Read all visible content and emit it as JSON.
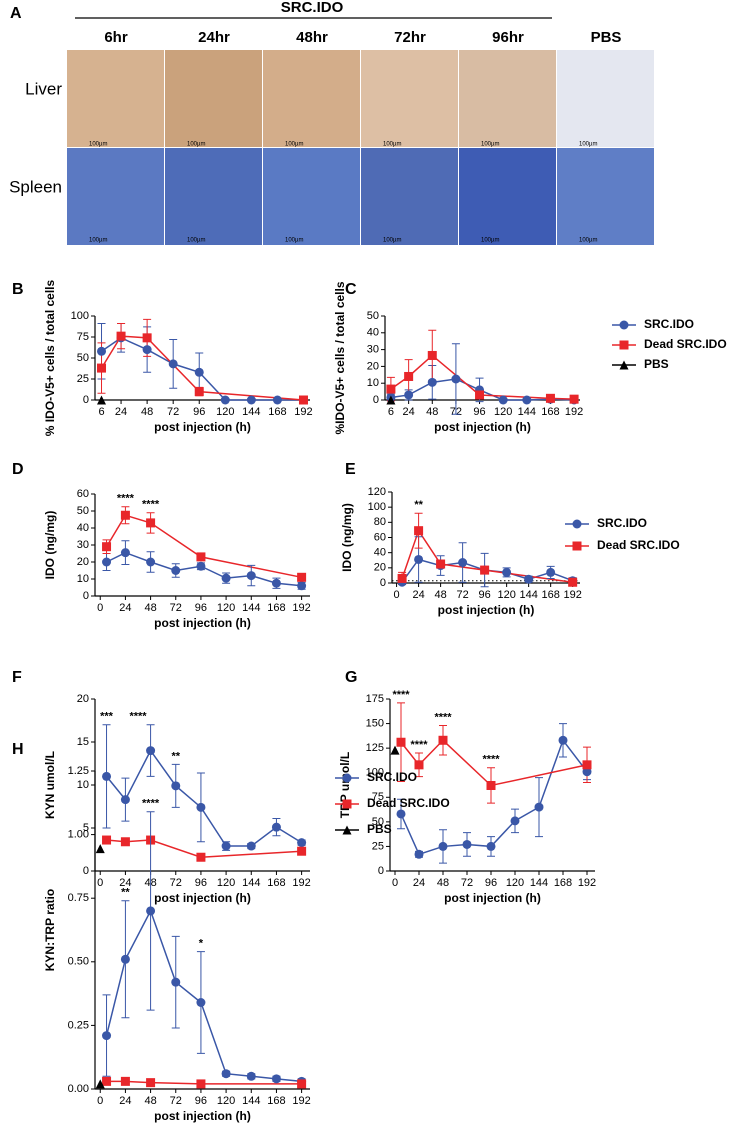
{
  "figure_a": {
    "panel": "A",
    "group": "SRC.IDO",
    "columns": [
      "6hr",
      "24hr",
      "48hr",
      "72hr",
      "96hr",
      "PBS"
    ],
    "rows": [
      "Liver",
      "Spleen"
    ],
    "scale_bar": "100µm"
  },
  "chart_data": [
    {
      "panel": "B",
      "type": "line",
      "ylabel": "% IDO-V5+ cells / total cells",
      "xlabel": "post injection (h)",
      "xlim": [
        0,
        198
      ],
      "ylim": [
        0,
        100
      ],
      "xticks": [
        6,
        24,
        48,
        72,
        96,
        120,
        144,
        168,
        192
      ],
      "yticks": [
        0,
        25,
        50,
        75,
        100
      ],
      "series": [
        {
          "color": "#3a57a7",
          "marker": "circle",
          "x": [
            6,
            24,
            48,
            72,
            96,
            120,
            144,
            168,
            192
          ],
          "values": [
            58,
            74,
            60,
            43,
            33,
            0,
            0,
            0,
            0
          ],
          "errors": [
            33,
            17,
            27,
            29,
            23,
            0,
            0,
            0,
            0
          ]
        },
        {
          "color": "#e8262a",
          "marker": "square",
          "x": [
            6,
            24,
            48,
            96,
            192
          ],
          "values": [
            38,
            76,
            74,
            10,
            0
          ],
          "errors": [
            30,
            15,
            22,
            5,
            0
          ]
        },
        {
          "color": "#000000",
          "marker": "triangle",
          "x": [
            6
          ],
          "values": [
            0
          ]
        }
      ]
    },
    {
      "panel": "C",
      "type": "line",
      "ylabel": "%IDO-V5+ cells / total cells",
      "xlabel": "post injection (h)",
      "xlim": [
        0,
        198
      ],
      "ylim": [
        0,
        50
      ],
      "xticks": [
        6,
        24,
        48,
        72,
        96,
        120,
        144,
        168,
        192
      ],
      "yticks": [
        0,
        10,
        20,
        30,
        40,
        50
      ],
      "legend": "right",
      "series": [
        {
          "name": "SRC.IDO",
          "color": "#3a57a7",
          "marker": "circle",
          "x": [
            6,
            24,
            48,
            72,
            96,
            120,
            144,
            168,
            192
          ],
          "values": [
            1.5,
            3,
            10.5,
            12.5,
            6,
            0,
            0,
            0.5,
            0
          ],
          "errors": [
            2,
            3,
            10,
            21,
            7,
            0,
            0,
            0,
            0
          ]
        },
        {
          "name": "Dead SRC.IDO",
          "color": "#e8262a",
          "marker": "square",
          "x": [
            6,
            24,
            48,
            96,
            168,
            192
          ],
          "values": [
            6.5,
            14,
            26.5,
            3,
            1,
            0.5
          ],
          "errors": [
            7,
            10,
            15,
            2,
            0,
            0
          ]
        },
        {
          "name": "PBS",
          "color": "#000000",
          "marker": "triangle",
          "x": [
            6
          ],
          "values": [
            0
          ]
        }
      ]
    },
    {
      "panel": "D",
      "type": "line",
      "ylabel": "IDO (ng/mg)",
      "xlabel": "post injection (h)",
      "xlim": [
        -5,
        200
      ],
      "ylim": [
        0,
        60
      ],
      "xticks": [
        0,
        24,
        48,
        72,
        96,
        120,
        144,
        168,
        192
      ],
      "yticks": [
        0,
        10,
        20,
        30,
        40,
        50,
        60
      ],
      "series": [
        {
          "color": "#3a57a7",
          "marker": "circle",
          "x": [
            6,
            24,
            48,
            72,
            96,
            120,
            144,
            168,
            192
          ],
          "values": [
            20,
            25.5,
            20,
            15,
            17.5,
            10.5,
            12,
            7.5,
            6
          ],
          "errors": [
            5,
            7,
            6,
            4,
            2,
            3,
            6,
            3,
            2
          ]
        },
        {
          "color": "#e8262a",
          "marker": "square",
          "x": [
            6,
            24,
            48,
            96,
            192
          ],
          "values": [
            29,
            47.5,
            43,
            23,
            11
          ],
          "errors": [
            4,
            5,
            6,
            2,
            1
          ]
        }
      ],
      "annotations": [
        {
          "text": "****",
          "x": 24
        },
        {
          "text": "****",
          "x": 48
        }
      ]
    },
    {
      "panel": "E",
      "type": "line",
      "ylabel": "IDO (ng/mg)",
      "xlabel": "post injection (h)",
      "xlim": [
        -5,
        200
      ],
      "ylim": [
        0,
        120
      ],
      "xticks": [
        0,
        24,
        48,
        72,
        96,
        120,
        144,
        168,
        192
      ],
      "yticks": [
        0,
        20,
        40,
        60,
        80,
        100,
        120
      ],
      "legend": "right",
      "reference_line": 3,
      "series": [
        {
          "name": "SRC.IDO",
          "color": "#3a57a7",
          "marker": "circle",
          "x": [
            6,
            24,
            48,
            72,
            96,
            120,
            144,
            168,
            192
          ],
          "values": [
            1,
            31,
            23,
            27,
            17,
            14,
            5,
            14,
            3
          ],
          "errors": [
            1,
            30,
            13,
            26,
            22,
            6,
            4,
            8,
            4
          ]
        },
        {
          "name": "Dead  SRC.IDO",
          "color": "#e8262a",
          "marker": "square",
          "x": [
            6,
            24,
            48,
            96,
            192
          ],
          "values": [
            6,
            69,
            25,
            17,
            1
          ],
          "errors": [
            8,
            23,
            5,
            5,
            1
          ]
        }
      ],
      "annotations": [
        {
          "text": "**",
          "x": 24
        }
      ]
    },
    {
      "panel": "F",
      "type": "line",
      "ylabel": "KYN umol/L",
      "xlabel": "post injection (h)",
      "xlim": [
        -5,
        200
      ],
      "ylim": [
        0,
        20
      ],
      "xticks": [
        0,
        24,
        48,
        72,
        96,
        120,
        144,
        168,
        192
      ],
      "yticks": [
        0,
        5,
        10,
        15,
        20
      ],
      "series": [
        {
          "color": "#3a57a7",
          "marker": "circle",
          "x": [
            6,
            24,
            48,
            72,
            96,
            120,
            144,
            168,
            192
          ],
          "values": [
            11,
            8.3,
            14,
            9.9,
            7.4,
            2.9,
            2.9,
            5.1,
            3.3
          ],
          "errors": [
            6,
            2.5,
            3,
            2.5,
            4,
            0.5,
            0.3,
            1,
            0.3
          ]
        },
        {
          "color": "#e8262a",
          "marker": "square",
          "x": [
            6,
            24,
            48,
            96,
            192
          ],
          "values": [
            3.6,
            3.4,
            3.6,
            1.6,
            2.3
          ]
        },
        {
          "color": "#000000",
          "marker": "triangle",
          "x": [
            0
          ],
          "values": [
            2.6
          ]
        }
      ],
      "annotations": [
        {
          "text": "***",
          "x": 6
        },
        {
          "text": "****",
          "x": 36
        },
        {
          "text": "**",
          "x": 72
        }
      ]
    },
    {
      "panel": "G",
      "type": "line",
      "ylabel": "TRP umol/L",
      "xlabel": "post injection (h)",
      "xlim": [
        -5,
        200
      ],
      "ylim": [
        0,
        175
      ],
      "xticks": [
        0,
        24,
        48,
        72,
        96,
        120,
        144,
        168,
        192
      ],
      "yticks": [
        0,
        25,
        50,
        75,
        100,
        125,
        150,
        175
      ],
      "series": [
        {
          "color": "#3a57a7",
          "marker": "circle",
          "x": [
            6,
            24,
            48,
            72,
            96,
            120,
            144,
            168,
            192
          ],
          "values": [
            58,
            17,
            25,
            27,
            25,
            51,
            65,
            133,
            101
          ],
          "errors": [
            15,
            3,
            17,
            12,
            10,
            12,
            30,
            17,
            8
          ]
        },
        {
          "color": "#e8262a",
          "marker": "square",
          "x": [
            6,
            24,
            48,
            96,
            192
          ],
          "values": [
            131,
            108,
            133,
            87,
            108
          ],
          "errors": [
            40,
            12,
            15,
            18,
            18
          ]
        },
        {
          "color": "#000000",
          "marker": "triangle",
          "x": [
            0
          ],
          "values": [
            123
          ]
        }
      ],
      "annotations": [
        {
          "text": "****",
          "x": 6
        },
        {
          "text": "****",
          "x": 24
        },
        {
          "text": "****",
          "x": 48
        },
        {
          "text": "****",
          "x": 96
        }
      ]
    },
    {
      "panel": "H",
      "type": "line",
      "ylabel": "KYN:TRP ratio",
      "xlabel": "post injection (h)",
      "xlim": [
        -5,
        200
      ],
      "ylim": [
        0,
        1.25
      ],
      "xticks": [
        0,
        24,
        48,
        72,
        96,
        120,
        144,
        168,
        192
      ],
      "yticks": [
        {
          "value": 0,
          "label": "0.00"
        },
        0.25,
        {
          "value": 0.5,
          "label": "0.50"
        },
        0.75,
        {
          "value": 1,
          "label": "1.00"
        },
        1.25
      ],
      "legend": "right",
      "series": [
        {
          "name": "SRC.IDO",
          "color": "#3a57a7",
          "marker": "circle",
          "x": [
            6,
            24,
            48,
            72,
            96,
            120,
            144,
            168,
            192
          ],
          "values": [
            0.21,
            0.51,
            0.7,
            0.42,
            0.34,
            0.06,
            0.05,
            0.04,
            0.03
          ],
          "errors": [
            0.16,
            0.23,
            0.39,
            0.18,
            0.2,
            0.01,
            0.01,
            0.01,
            0.01
          ]
        },
        {
          "name": "Dead SRC.IDO",
          "color": "#e8262a",
          "marker": "square",
          "x": [
            6,
            24,
            48,
            96,
            192
          ],
          "values": [
            0.03,
            0.03,
            0.025,
            0.02,
            0.02
          ]
        },
        {
          "name": "PBS",
          "color": "#000000",
          "marker": "triangle",
          "x": [
            0
          ],
          "values": [
            0.02
          ]
        }
      ],
      "annotations": [
        {
          "text": "**",
          "x": 24
        },
        {
          "text": "****",
          "x": 48
        },
        {
          "text": "*",
          "x": 96
        }
      ]
    }
  ]
}
